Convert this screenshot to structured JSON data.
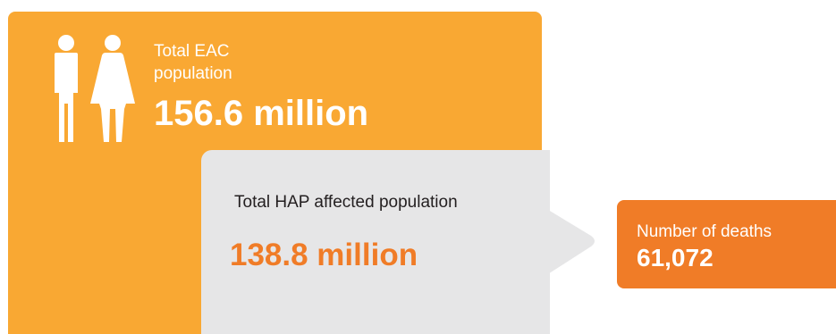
{
  "eac": {
    "label": "Total EAC population",
    "value": "156.6 million",
    "icon": "man-woman-icon"
  },
  "hap": {
    "label": "Total HAP affected population",
    "value": "138.8 million"
  },
  "deaths": {
    "label": "Number of deaths",
    "value": "61,072"
  },
  "colors": {
    "eac_panel": "#F9A833",
    "hap_panel": "#E6E6E7",
    "accent_orange": "#F07C27",
    "dark_text": "#231F20",
    "white": "#FFFFFF"
  }
}
